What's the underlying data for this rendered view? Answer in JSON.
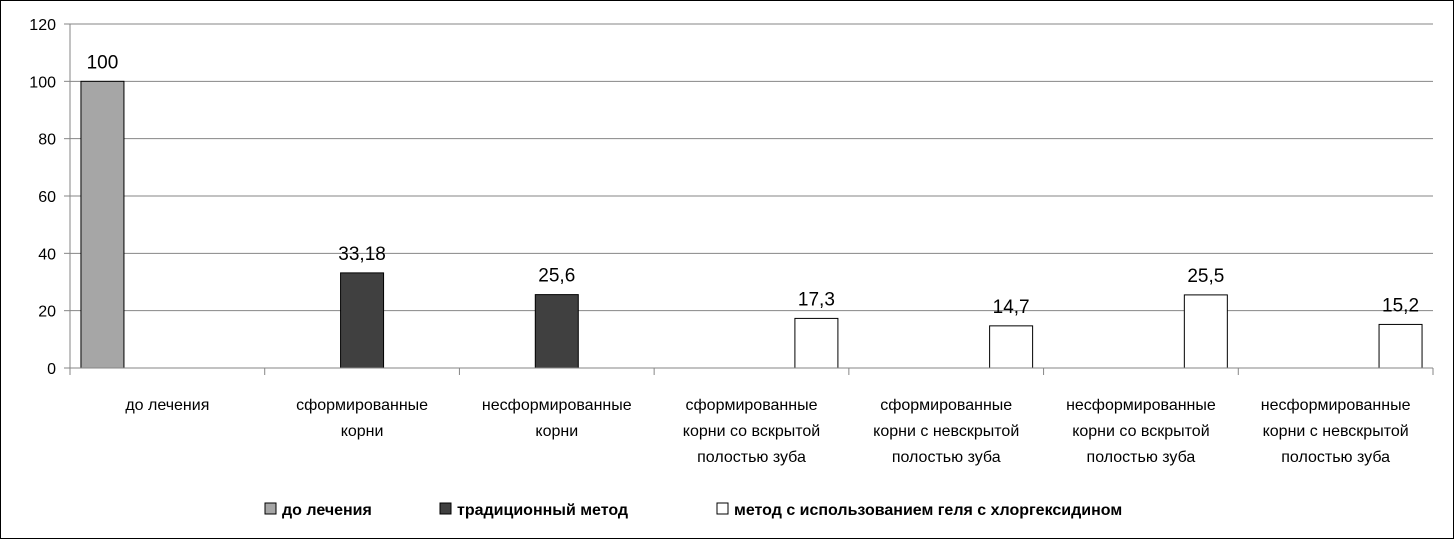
{
  "chart_data": {
    "type": "bar",
    "ylim": [
      0,
      120
    ],
    "yticks": [
      "0",
      "20",
      "40",
      "60",
      "80",
      "100",
      "120"
    ],
    "grid": true,
    "legend_position": "bottom",
    "categories": [
      [
        "до лечения"
      ],
      [
        "сформированные",
        "корни"
      ],
      [
        "несформированные",
        "корни"
      ],
      [
        "сформированные",
        "корни  со вскрытой",
        "полостью зуба"
      ],
      [
        "сформированные",
        "корни  с невскрытой",
        "полостью зуба"
      ],
      [
        "несформированные",
        "корни со вскрытой",
        "полостью зуба"
      ],
      [
        "несформированные",
        "корни с невскрытой",
        "полостью зуба"
      ]
    ],
    "series": [
      {
        "name": "до лечения",
        "color": "#a6a6a6",
        "values": [
          100,
          null,
          null,
          null,
          null,
          null,
          null
        ]
      },
      {
        "name": "традиционный метод",
        "color": "#404040",
        "values": [
          null,
          33.18,
          25.6,
          null,
          null,
          null,
          null
        ]
      },
      {
        "name": "метод с использованием геля с хлоргексидином",
        "color": "#ffffff",
        "values": [
          null,
          null,
          null,
          17.3,
          14.7,
          25.5,
          15.2
        ]
      }
    ],
    "data_labels": [
      "100",
      "33,18",
      "25,6",
      "17,3",
      "14,7",
      "25,5",
      "15,2"
    ]
  }
}
